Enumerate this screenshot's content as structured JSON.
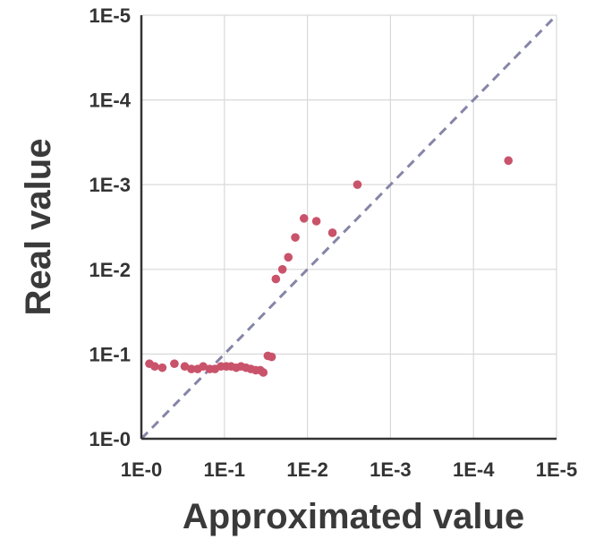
{
  "chart_data": {
    "type": "scatter",
    "xlabel": "Approximated value",
    "ylabel": "Real value",
    "x_scale": "log-reversed",
    "y_scale": "log-reversed",
    "xlim": [
      1,
      1e-05
    ],
    "ylim": [
      1,
      1e-05
    ],
    "x_ticks": [
      {
        "value": 1,
        "label": "1E-0"
      },
      {
        "value": 0.1,
        "label": "1E-1"
      },
      {
        "value": 0.01,
        "label": "1E-2"
      },
      {
        "value": 0.001,
        "label": "1E-3"
      },
      {
        "value": 0.0001,
        "label": "1E-4"
      },
      {
        "value": 1e-05,
        "label": "1E-5"
      }
    ],
    "y_ticks": [
      {
        "value": 1,
        "label": "1E-0"
      },
      {
        "value": 0.1,
        "label": "1E-1"
      },
      {
        "value": 0.01,
        "label": "1E-2"
      },
      {
        "value": 0.001,
        "label": "1E-3"
      },
      {
        "value": 0.0001,
        "label": "1E-4"
      },
      {
        "value": 1e-05,
        "label": "1E-5"
      }
    ],
    "grid": true,
    "reference_line": {
      "style": "dashed",
      "color": "#8585a8",
      "x": [
        1,
        1e-05
      ],
      "y": [
        1,
        1e-05
      ]
    },
    "series": [
      {
        "color": "#c9536a",
        "points": [
          {
            "x": 0.8,
            "y": 0.13
          },
          {
            "x": 0.69,
            "y": 0.14
          },
          {
            "x": 0.56,
            "y": 0.145
          },
          {
            "x": 0.4,
            "y": 0.13
          },
          {
            "x": 0.3,
            "y": 0.14
          },
          {
            "x": 0.25,
            "y": 0.15
          },
          {
            "x": 0.21,
            "y": 0.15
          },
          {
            "x": 0.18,
            "y": 0.14
          },
          {
            "x": 0.15,
            "y": 0.15
          },
          {
            "x": 0.13,
            "y": 0.15
          },
          {
            "x": 0.11,
            "y": 0.14
          },
          {
            "x": 0.095,
            "y": 0.14
          },
          {
            "x": 0.083,
            "y": 0.14
          },
          {
            "x": 0.072,
            "y": 0.145
          },
          {
            "x": 0.063,
            "y": 0.14
          },
          {
            "x": 0.055,
            "y": 0.145
          },
          {
            "x": 0.048,
            "y": 0.15
          },
          {
            "x": 0.042,
            "y": 0.155
          },
          {
            "x": 0.037,
            "y": 0.155
          },
          {
            "x": 0.034,
            "y": 0.165
          },
          {
            "x": 0.03,
            "y": 0.105
          },
          {
            "x": 0.027,
            "y": 0.108
          },
          {
            "x": 0.024,
            "y": 0.013
          },
          {
            "x": 0.02,
            "y": 0.01
          },
          {
            "x": 0.017,
            "y": 0.0072
          },
          {
            "x": 0.014,
            "y": 0.0042
          },
          {
            "x": 0.011,
            "y": 0.0025
          },
          {
            "x": 0.0078,
            "y": 0.0027
          },
          {
            "x": 0.005,
            "y": 0.0037
          },
          {
            "x": 0.0025,
            "y": 0.001
          },
          {
            "x": 3.8e-05,
            "y": 0.00052
          }
        ]
      }
    ]
  }
}
